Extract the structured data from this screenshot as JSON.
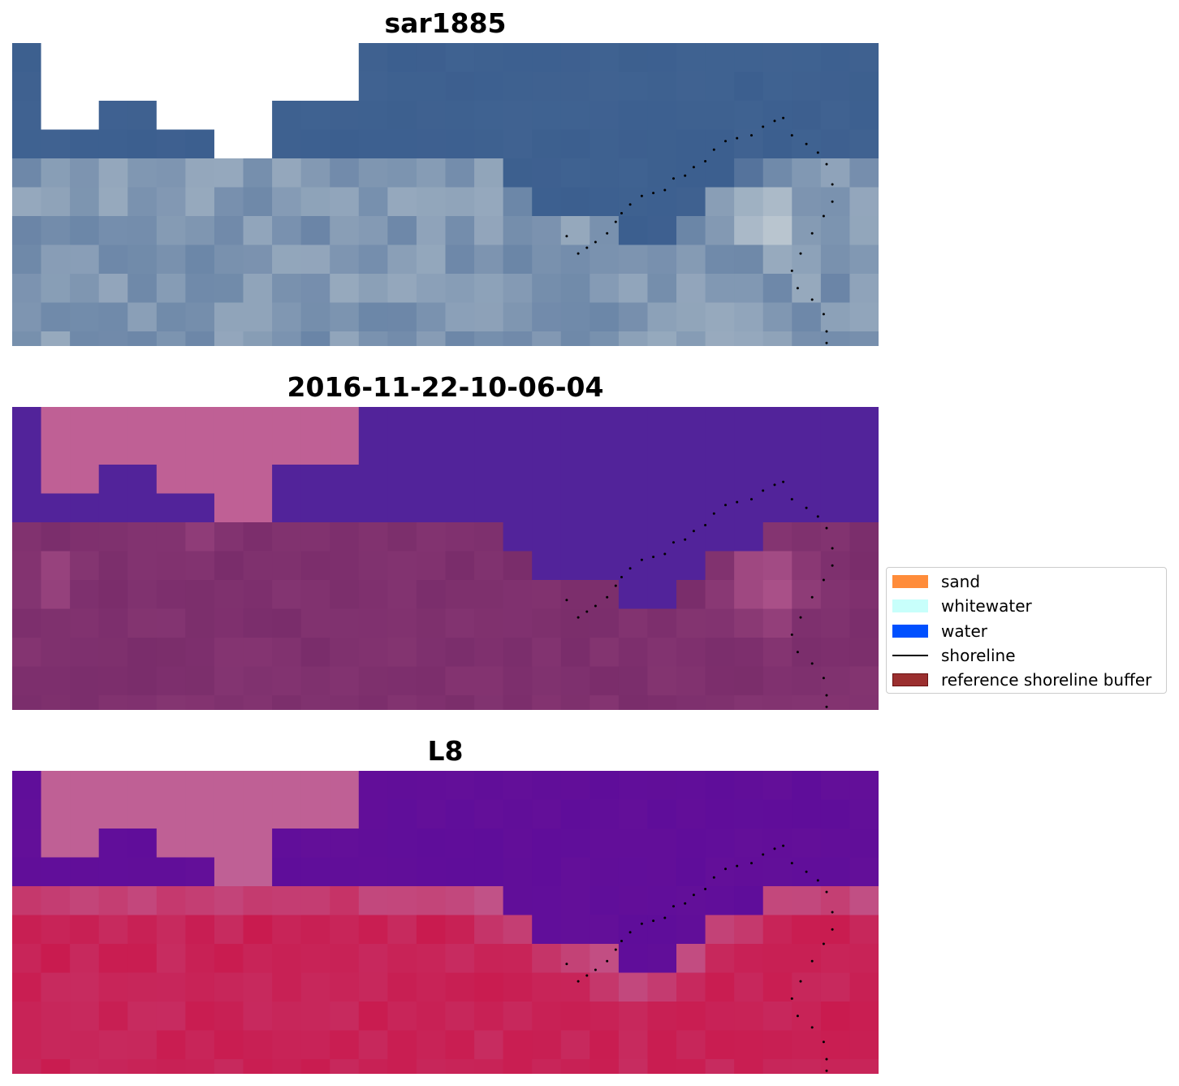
{
  "panels": [
    {
      "title": "sar1885",
      "type": "rgb"
    },
    {
      "title": "2016-11-22-10-06-04",
      "type": "classified"
    },
    {
      "title": "L8",
      "type": "index"
    }
  ],
  "legend": [
    {
      "label": "sand",
      "kind": "patch",
      "color": "#ff8c3a"
    },
    {
      "label": "whitewater",
      "kind": "patch",
      "color": "#c8fffb"
    },
    {
      "label": "water",
      "kind": "patch",
      "color": "#0050ff"
    },
    {
      "label": "shoreline",
      "kind": "line",
      "color": "#000000"
    },
    {
      "label": "reference shoreline buffer",
      "kind": "patch",
      "color": "#9b2f2f",
      "edge": "#6a1010"
    }
  ],
  "colors": {
    "rgb_water": "#3c5f8f",
    "rgb_bright": "#f5f7ee",
    "buffer_mask": "#bf6095",
    "classified_water": "#52239a",
    "classified_land": "#7a2d6b",
    "index_water": "#5f0d9a",
    "index_land": "#c91b4f"
  }
}
